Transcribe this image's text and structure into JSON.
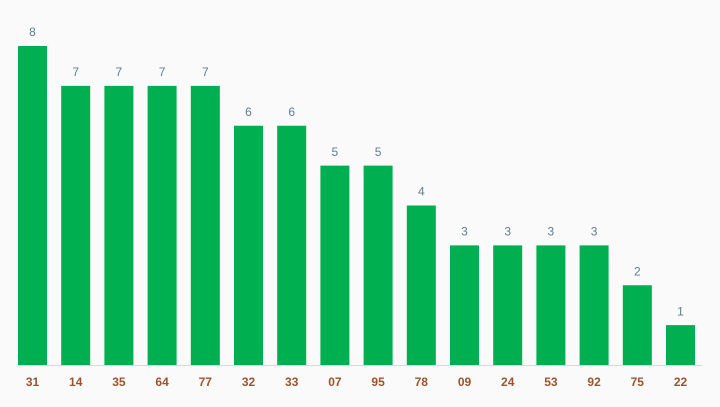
{
  "chart_data": {
    "type": "bar",
    "categories": [
      "31",
      "14",
      "35",
      "64",
      "77",
      "32",
      "33",
      "07",
      "95",
      "78",
      "09",
      "24",
      "53",
      "92",
      "75",
      "22"
    ],
    "values": [
      8,
      7,
      7,
      7,
      7,
      6,
      6,
      5,
      5,
      4,
      3,
      3,
      3,
      3,
      2,
      1
    ],
    "color": "#00b050",
    "ylim": [
      0,
      8
    ]
  }
}
